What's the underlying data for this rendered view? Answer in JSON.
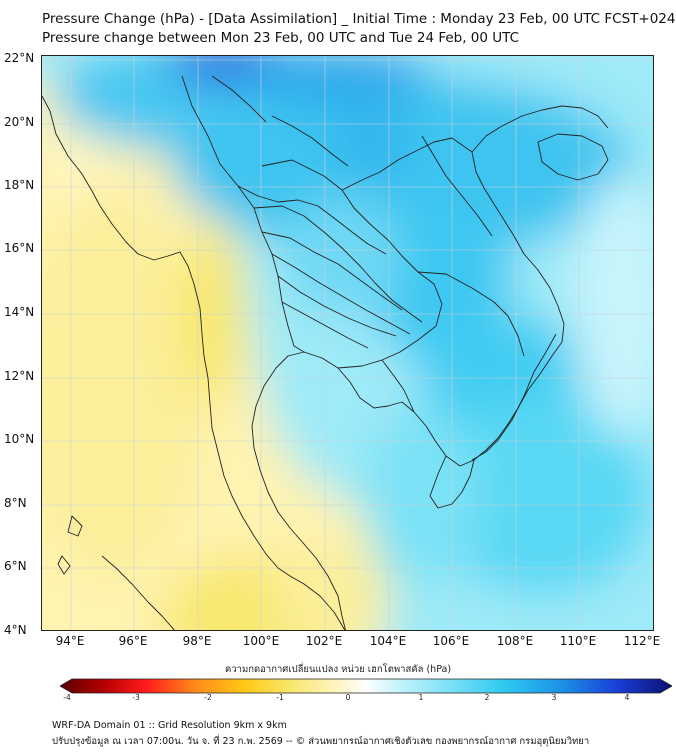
{
  "header": {
    "title_line1": "Pressure Change (hPa) - [Data Assimilation] _ Initial Time : Monday 23 Feb, 00 UTC FCST+024",
    "title_line2": "Pressure change between Mon 23 Feb, 00 UTC and Tue 24 Feb, 00 UTC"
  },
  "map": {
    "lat_labels": [
      "22°N",
      "20°N",
      "18°N",
      "16°N",
      "14°N",
      "12°N",
      "10°N",
      "8°N",
      "6°N",
      "4°N"
    ],
    "lon_labels": [
      "94°E",
      "96°E",
      "98°E",
      "100°E",
      "102°E",
      "104°E",
      "106°E",
      "108°E",
      "110°E",
      "112°E"
    ],
    "colors": {
      "positive_strong": "#1a3fd8",
      "positive_mid": "#2cc8f0",
      "positive_light": "#aef0fc",
      "neutral": "#ffffff",
      "negative_light": "#fff6c0",
      "negative_mid": "#f8e870",
      "coastline": "#222222"
    }
  },
  "colorbar": {
    "title": "ความกดอากาศเปลี่ยนแปลง หน่วย เฮกโตพาสคัล (hPa)",
    "ticks": [
      "-4",
      "-3",
      "-2",
      "-1",
      "0",
      "1",
      "2",
      "3",
      "4"
    ],
    "range": [
      -4,
      4
    ]
  },
  "footer": {
    "line1": "WRF-DA Domain 01 :: Grid Resolution 9km x 9km",
    "line2": "ปรับปรุงข้อมูล ณ เวลา 07:00น. วัน จ. ที่ 23 ก.พ. 2569 -- © ส่วนพยากรณ์อากาศเชิงตัวเลข กองพยากรณ์อากาศ กรมอุตุนิยมวิทยา"
  }
}
